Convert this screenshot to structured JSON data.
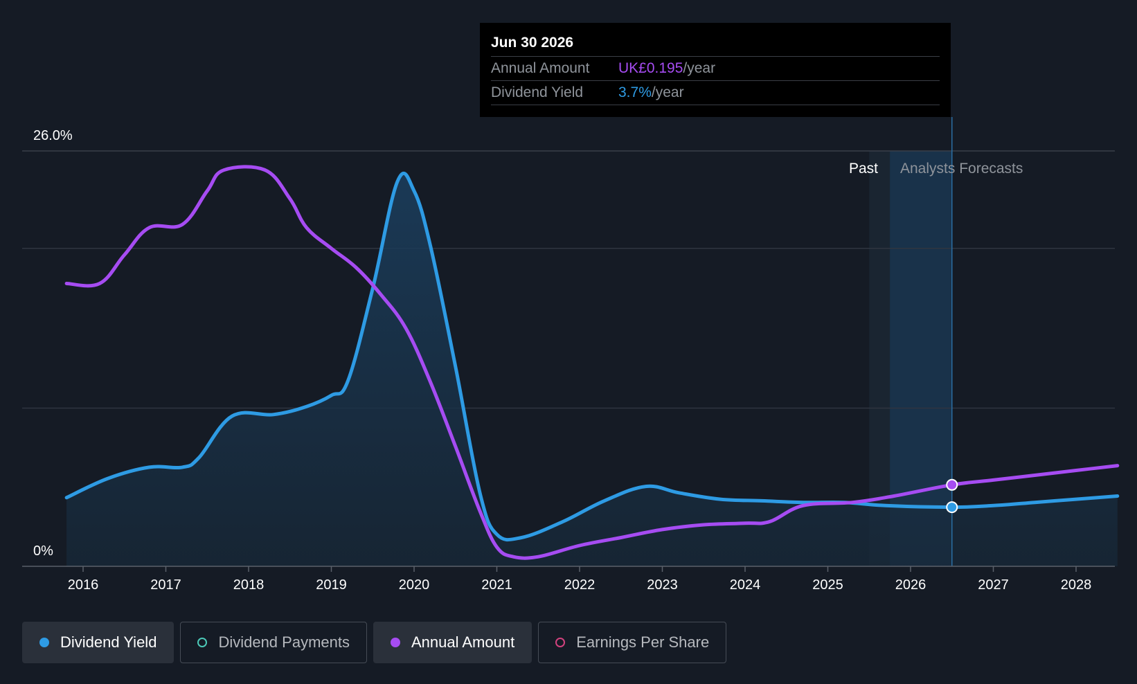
{
  "tooltip": {
    "date": "Jun 30 2026",
    "annual_label": "Annual Amount",
    "annual_value": "UK£0.195",
    "annual_unit": "/year",
    "yield_label": "Dividend Yield",
    "yield_value": "3.7%",
    "yield_unit": "/year"
  },
  "regions": {
    "past": "Past",
    "forecast": "Analysts Forecasts"
  },
  "legend": [
    {
      "label": "Dividend Yield",
      "color": "#2e9be4",
      "active": true,
      "filled": true
    },
    {
      "label": "Dividend Payments",
      "color": "#4cc9b8",
      "active": false,
      "filled": false
    },
    {
      "label": "Annual Amount",
      "color": "#a64cf2",
      "active": true,
      "filled": true
    },
    {
      "label": "Earnings Per Share",
      "color": "#d2427e",
      "active": false,
      "filled": false
    }
  ],
  "colors": {
    "yield": "#2e9be4",
    "amount": "#a64cf2",
    "grid": "#2f3540",
    "axis": "#5b616b"
  },
  "chart_data": {
    "type": "line",
    "title": "",
    "xlabel": "",
    "ylabel": "",
    "x_ticks": [
      "2016",
      "2017",
      "2018",
      "2019",
      "2020",
      "2021",
      "2022",
      "2023",
      "2024",
      "2025",
      "2026",
      "2027",
      "2028"
    ],
    "y_tick_labels": [
      "26.0%",
      "0%"
    ],
    "ylim": [
      0,
      26
    ],
    "xlim": [
      2015.7,
      2028.5
    ],
    "past_end": 2025.5,
    "forecast_start": 2025.75,
    "tooltip_x": 2026.5,
    "series": [
      {
        "name": "Dividend Yield",
        "unit": "%",
        "points": [
          [
            2015.8,
            4.3
          ],
          [
            2016.3,
            5.5
          ],
          [
            2016.8,
            6.2
          ],
          [
            2017.2,
            6.2
          ],
          [
            2017.4,
            6.8
          ],
          [
            2017.8,
            9.4
          ],
          [
            2018.3,
            9.5
          ],
          [
            2018.7,
            10.0
          ],
          [
            2019.0,
            10.7
          ],
          [
            2019.2,
            11.6
          ],
          [
            2019.5,
            17.4
          ],
          [
            2019.8,
            24.1
          ],
          [
            2020.0,
            23.5
          ],
          [
            2020.2,
            20.0
          ],
          [
            2020.5,
            12.5
          ],
          [
            2020.8,
            4.5
          ],
          [
            2021.0,
            2.0
          ],
          [
            2021.3,
            1.8
          ],
          [
            2021.8,
            2.8
          ],
          [
            2022.3,
            4.1
          ],
          [
            2022.8,
            5.0
          ],
          [
            2023.2,
            4.6
          ],
          [
            2023.7,
            4.2
          ],
          [
            2024.2,
            4.1
          ],
          [
            2024.7,
            4.0
          ],
          [
            2025.2,
            4.0
          ],
          [
            2025.7,
            3.8
          ],
          [
            2026.5,
            3.7
          ],
          [
            2027.0,
            3.8
          ],
          [
            2027.5,
            4.0
          ],
          [
            2028.0,
            4.2
          ],
          [
            2028.5,
            4.4
          ]
        ]
      },
      {
        "name": "Annual Amount",
        "unit": "UK£",
        "points": [
          [
            2015.8,
            17.7
          ],
          [
            2016.2,
            17.7
          ],
          [
            2016.5,
            19.5
          ],
          [
            2016.8,
            21.2
          ],
          [
            2017.2,
            21.4
          ],
          [
            2017.5,
            23.5
          ],
          [
            2017.7,
            24.8
          ],
          [
            2018.2,
            24.8
          ],
          [
            2018.5,
            23.0
          ],
          [
            2018.7,
            21.2
          ],
          [
            2019.0,
            19.9
          ],
          [
            2019.3,
            18.7
          ],
          [
            2019.6,
            17.0
          ],
          [
            2019.9,
            14.9
          ],
          [
            2020.2,
            11.5
          ],
          [
            2020.5,
            7.5
          ],
          [
            2020.8,
            3.4
          ],
          [
            2021.0,
            1.2
          ],
          [
            2021.2,
            0.6
          ],
          [
            2021.5,
            0.6
          ],
          [
            2022.0,
            1.3
          ],
          [
            2022.5,
            1.8
          ],
          [
            2023.0,
            2.3
          ],
          [
            2023.5,
            2.6
          ],
          [
            2024.0,
            2.7
          ],
          [
            2024.3,
            2.8
          ],
          [
            2024.7,
            3.8
          ],
          [
            2025.3,
            4.0
          ],
          [
            2025.8,
            4.4
          ],
          [
            2026.5,
            5.1
          ],
          [
            2027.0,
            5.4
          ],
          [
            2027.5,
            5.7
          ],
          [
            2028.0,
            6.0
          ],
          [
            2028.5,
            6.3
          ]
        ]
      }
    ],
    "highlight_points": [
      {
        "series": "Annual Amount",
        "x": 2026.5,
        "y": 5.1
      },
      {
        "series": "Dividend Yield",
        "x": 2026.5,
        "y": 3.7
      }
    ]
  }
}
